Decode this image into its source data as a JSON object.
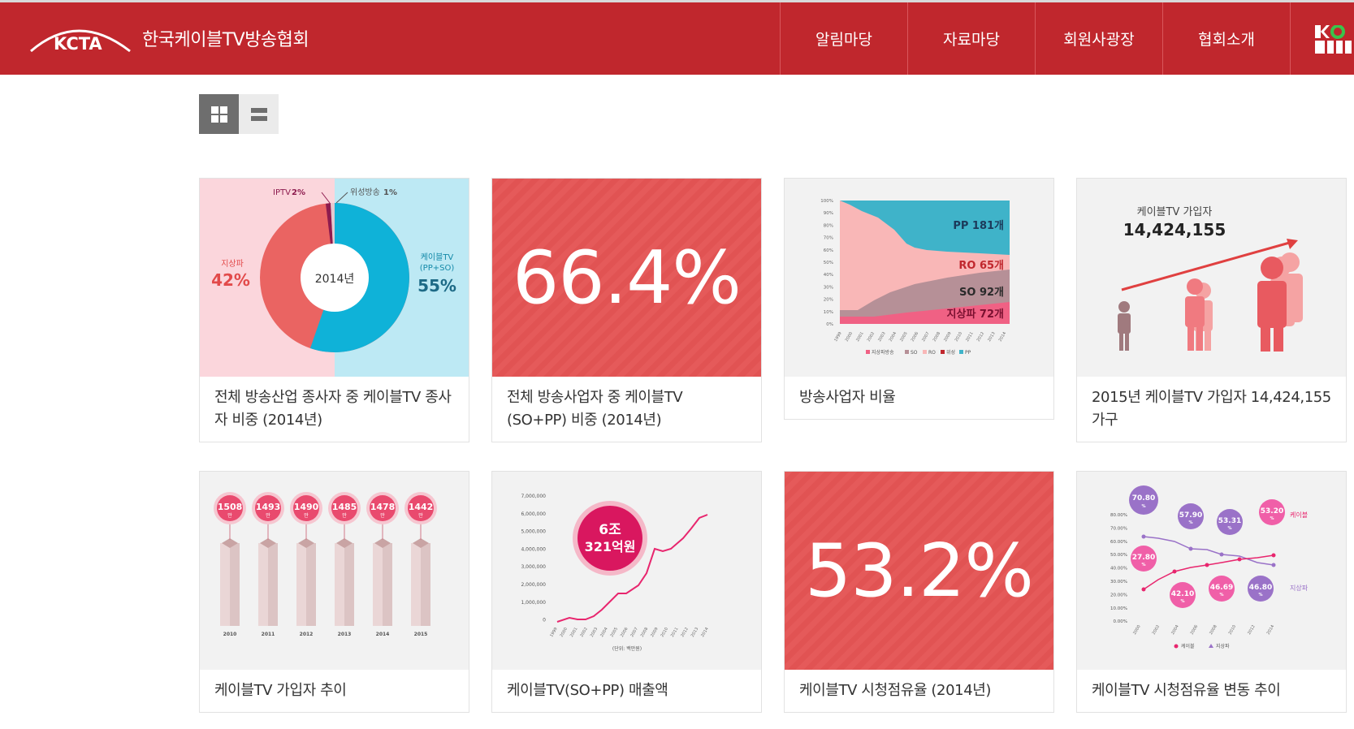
{
  "header": {
    "logo_text": "KCTA",
    "site_title": "한국케이블TV방송협회",
    "nav": [
      "알림마당",
      "자료마당",
      "회원사광장",
      "협회소개"
    ],
    "brand_red": "#c0272d"
  },
  "view_toggle": {
    "grid_icon": "grid-icon",
    "list_icon": "list-icon",
    "active": "grid"
  },
  "cards": [
    {
      "caption": "전체 방송산업 종사자 중 케이블TV 종사자 비중 (2014년)"
    },
    {
      "caption": "전체 방송사업자 중 케이블TV (SO+PP) 비중 (2014년)",
      "big_value": "66.4%"
    },
    {
      "caption": "방송사업자 비율"
    },
    {
      "caption": "2015년 케이블TV 가입자 14,424,155 가구"
    },
    {
      "caption": "케이블TV 가입자 추이"
    },
    {
      "caption": "케이블TV(SO+PP) 매출액"
    },
    {
      "caption": "케이블TV 시청점유율 (2014년)",
      "big_value": "53.2%"
    },
    {
      "caption": "케이블TV 시청점유율 변동 추이"
    }
  ],
  "donut": {
    "center": "2014년",
    "slices": [
      {
        "label": "케이블TV (PP+SO)",
        "value_text": "55%",
        "value": 55,
        "color": "#0fb2d8"
      },
      {
        "label": "지상파",
        "value_text": "42%",
        "value": 42,
        "color": "#ea6462"
      },
      {
        "label": "IPTV",
        "value_text": "2%",
        "value": 2,
        "color": "#8d1b4e"
      },
      {
        "label": "위성방송",
        "value_text": "1%",
        "value": 1,
        "color": "#e4c9cf"
      }
    ],
    "label_cable": "케이블TV",
    "label_cable2": "(PP+SO)",
    "label_terrestrial": "지상파",
    "label_iptv": "IPTV",
    "label_iptv_pct": "2%",
    "label_sat": "위성방송",
    "label_sat_pct": "1%"
  },
  "area_chart": {
    "labels": [
      "PP 181개",
      "RO 65개",
      "SO 92개",
      "지상파 72개"
    ],
    "y_ticks": [
      "100%",
      "90%",
      "80%",
      "70%",
      "60%",
      "50%",
      "40%",
      "30%",
      "20%",
      "10%",
      "0%"
    ],
    "x_ticks": [
      "1999",
      "2000",
      "2001",
      "2002",
      "2003",
      "2004",
      "2005",
      "2006",
      "2007",
      "2008",
      "2009",
      "2010",
      "2011",
      "2012",
      "2013",
      "2014"
    ],
    "legend": [
      "지상파방송",
      "SO",
      "RO",
      "위성",
      "PP"
    ]
  },
  "subscribers": {
    "label": "케이블TV 가입자",
    "value": "14,424,155"
  },
  "sub_trend": {
    "years": [
      "2010",
      "2011",
      "2012",
      "2013",
      "2014",
      "2015"
    ],
    "values": [
      "1508",
      "1493",
      "1490",
      "1485",
      "1478",
      "1442"
    ],
    "unit": "만"
  },
  "revenue": {
    "badge_line1": "6조",
    "badge_line2": "321억원",
    "y_ticks": [
      "7,000,000",
      "6,000,000",
      "5,000,000",
      "4,000,000",
      "3,000,000",
      "2,000,000",
      "1,000,000",
      "0"
    ],
    "unit": "(단위: 백만원)"
  },
  "share_trend": {
    "cable_label": "케이블",
    "terrestrial_label": "지상파",
    "bubbles": [
      "70.80",
      "57.90",
      "53.31",
      "53.20",
      "27.80",
      "42.10",
      "46.69",
      "46.80"
    ],
    "pct": "%",
    "y_ticks": [
      "80.00%",
      "70.00%",
      "60.00%",
      "50.00%",
      "40.00%",
      "30.00%",
      "20.00%",
      "10.00%",
      "0.00%"
    ],
    "legend": [
      "케이블",
      "지상파"
    ]
  }
}
